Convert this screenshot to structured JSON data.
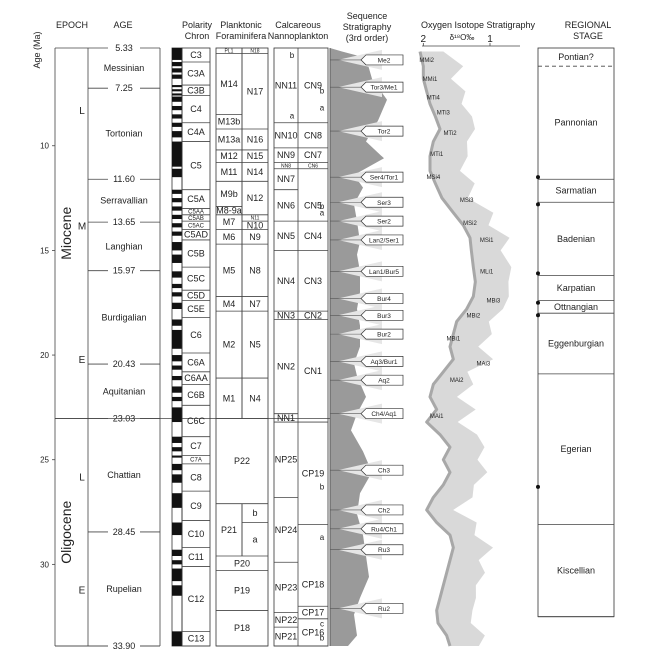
{
  "headers": {
    "age_axis": "Age (Ma)",
    "epoch": "EPOCH",
    "age": "AGE",
    "polarity": [
      "Polarity",
      "Chron"
    ],
    "planktonic": [
      "Planktonic",
      "Foraminifera"
    ],
    "nanno": [
      "Calcareous",
      "Nannoplankton"
    ],
    "sequence": [
      "Sequence",
      "Stratigraphy",
      "(3rd order)"
    ],
    "isotope": "Oxygen Isotope Stratigraphy",
    "isotope_unit": "δ¹⁸O‰",
    "regional": [
      "REGIONAL",
      "STAGE"
    ]
  },
  "axis": {
    "min": 5.33,
    "max": 33.9,
    "ticks": [
      10,
      15,
      20,
      25,
      30
    ],
    "isotope_ticks": [
      {
        "value": 2,
        "label": "2"
      },
      {
        "value": 1,
        "label": "1"
      }
    ]
  },
  "epochs": [
    {
      "name": "Miocene",
      "start": 5.33,
      "end": 23.03,
      "subs": [
        {
          "label": "L",
          "at": 8.3
        },
        {
          "label": "M",
          "at": 13.8
        },
        {
          "label": "E",
          "at": 20.2
        }
      ]
    },
    {
      "name": "Oligocene",
      "start": 23.03,
      "end": 33.9,
      "subs": [
        {
          "label": "L",
          "at": 25.8
        },
        {
          "label": "E",
          "at": 31.2
        }
      ]
    }
  ],
  "stages": [
    {
      "name": "Messinian",
      "start": 5.33,
      "end": 7.25
    },
    {
      "name": "Tortonian",
      "start": 7.25,
      "end": 11.6
    },
    {
      "name": "Serravallian",
      "start": 11.6,
      "end": 13.65
    },
    {
      "name": "Langhian",
      "start": 13.65,
      "end": 15.97
    },
    {
      "name": "Burdigalian",
      "start": 15.97,
      "end": 20.43
    },
    {
      "name": "Aquitanian",
      "start": 20.43,
      "end": 23.03
    },
    {
      "name": "Chattian",
      "start": 23.03,
      "end": 28.45
    },
    {
      "name": "Rupelian",
      "start": 28.45,
      "end": 33.9
    }
  ],
  "age_labels": [
    {
      "value": 5.33,
      "label": "5.33"
    },
    {
      "value": 7.25,
      "label": "7.25"
    },
    {
      "value": 11.6,
      "label": "11.60"
    },
    {
      "value": 13.65,
      "label": "13.65"
    },
    {
      "value": 15.97,
      "label": "15.97"
    },
    {
      "value": 20.43,
      "label": "20.43"
    },
    {
      "value": 23.03,
      "label": "23.03"
    },
    {
      "value": 28.45,
      "label": "28.45"
    },
    {
      "value": 33.9,
      "label": "33.90"
    }
  ],
  "chrons": [
    {
      "name": "C3",
      "start": 5.33,
      "end": 6.0
    },
    {
      "name": "C3A",
      "start": 6.0,
      "end": 7.1
    },
    {
      "name": "C3B",
      "start": 7.1,
      "end": 7.6
    },
    {
      "name": "C4",
      "start": 7.6,
      "end": 8.9
    },
    {
      "name": "C4A",
      "start": 8.9,
      "end": 9.8
    },
    {
      "name": "C5",
      "start": 9.8,
      "end": 12.1
    },
    {
      "name": "C5A",
      "start": 12.1,
      "end": 13.0
    },
    {
      "name": "C5AA",
      "start": 13.0,
      "end": 13.3
    },
    {
      "name": "C5AB",
      "start": 13.3,
      "end": 13.6
    },
    {
      "name": "C5AC",
      "start": 13.6,
      "end": 14.0
    },
    {
      "name": "C5AD",
      "start": 14.0,
      "end": 14.5
    },
    {
      "name": "C5B",
      "start": 14.5,
      "end": 15.8
    },
    {
      "name": "C5C",
      "start": 15.8,
      "end": 16.9
    },
    {
      "name": "C5D",
      "start": 16.9,
      "end": 17.4
    },
    {
      "name": "C5E",
      "start": 17.4,
      "end": 18.2
    },
    {
      "name": "C6",
      "start": 18.2,
      "end": 19.9
    },
    {
      "name": "C6A",
      "start": 19.9,
      "end": 20.8
    },
    {
      "name": "C6AA",
      "start": 20.8,
      "end": 21.4
    },
    {
      "name": "C6B",
      "start": 21.4,
      "end": 22.4
    },
    {
      "name": "C6C",
      "start": 22.4,
      "end": 23.9
    },
    {
      "name": "C7",
      "start": 23.9,
      "end": 24.8
    },
    {
      "name": "C7A",
      "start": 24.8,
      "end": 25.2
    },
    {
      "name": "C8",
      "start": 25.2,
      "end": 26.5
    },
    {
      "name": "C9",
      "start": 26.5,
      "end": 27.9
    },
    {
      "name": "C10",
      "start": 27.9,
      "end": 29.2
    },
    {
      "name": "C11",
      "start": 29.2,
      "end": 30.1
    },
    {
      "name": "C12",
      "start": 30.1,
      "end": 33.2
    },
    {
      "name": "C13",
      "start": 33.2,
      "end": 33.9
    }
  ],
  "polarity_normal": [
    [
      5.33,
      5.9
    ],
    [
      6.0,
      6.2
    ],
    [
      6.3,
      6.5
    ],
    [
      6.6,
      6.8
    ],
    [
      7.1,
      7.2
    ],
    [
      7.3,
      7.4
    ],
    [
      7.5,
      7.6
    ],
    [
      7.65,
      7.9
    ],
    [
      8.1,
      8.3
    ],
    [
      8.5,
      8.7
    ],
    [
      8.9,
      9.1
    ],
    [
      9.3,
      9.6
    ],
    [
      9.8,
      11.0
    ],
    [
      11.1,
      11.5
    ],
    [
      12.1,
      12.3
    ],
    [
      12.5,
      12.7
    ],
    [
      12.9,
      13.1
    ],
    [
      13.3,
      13.5
    ],
    [
      13.7,
      13.9
    ],
    [
      14.1,
      14.3
    ],
    [
      14.6,
      15.0
    ],
    [
      15.2,
      15.6
    ],
    [
      16.0,
      16.3
    ],
    [
      16.6,
      16.8
    ],
    [
      17.0,
      17.2
    ],
    [
      17.5,
      17.8
    ],
    [
      18.3,
      18.6
    ],
    [
      18.8,
      19.7
    ],
    [
      20.0,
      20.3
    ],
    [
      20.5,
      20.7
    ],
    [
      21.0,
      21.2
    ],
    [
      21.5,
      21.8
    ],
    [
      22.0,
      22.2
    ],
    [
      22.5,
      23.2
    ],
    [
      23.9,
      24.2
    ],
    [
      24.4,
      24.6
    ],
    [
      24.8,
      24.9
    ],
    [
      25.2,
      25.5
    ],
    [
      25.7,
      26.1
    ],
    [
      26.6,
      27.3
    ],
    [
      28.0,
      28.6
    ],
    [
      29.3,
      29.6
    ],
    [
      29.8,
      30.0
    ],
    [
      30.2,
      30.8
    ],
    [
      31.0,
      31.5
    ],
    [
      33.2,
      33.9
    ]
  ],
  "foram_zones": [
    {
      "name": "PL1",
      "start": 5.33,
      "end": 5.6,
      "col": "left"
    },
    {
      "name": "N18",
      "start": 5.33,
      "end": 5.6,
      "col": "right"
    },
    {
      "name": "M14",
      "start": 5.6,
      "end": 8.5,
      "col": "left"
    },
    {
      "name": "M13b",
      "start": 8.5,
      "end": 9.2,
      "col": "left"
    },
    {
      "name": "N17",
      "start": 5.6,
      "end": 9.2,
      "col": "right"
    },
    {
      "name": "M13a",
      "start": 9.2,
      "end": 10.2,
      "col": "left"
    },
    {
      "name": "N16",
      "start": 9.2,
      "end": 10.2,
      "col": "right"
    },
    {
      "name": "M12",
      "start": 10.2,
      "end": 10.8,
      "col": "left"
    },
    {
      "name": "N15",
      "start": 10.2,
      "end": 10.8,
      "col": "right"
    },
    {
      "name": "M11",
      "start": 10.8,
      "end": 11.7,
      "col": "left"
    },
    {
      "name": "N14",
      "start": 10.8,
      "end": 11.7,
      "col": "right"
    },
    {
      "name": "M9b",
      "start": 11.7,
      "end": 12.9,
      "col": "left"
    },
    {
      "name": "N12",
      "start": 11.7,
      "end": 13.3,
      "col": "right"
    },
    {
      "name": "M8-9a",
      "start": 12.9,
      "end": 13.3,
      "col": "left"
    },
    {
      "name": "M7",
      "start": 13.3,
      "end": 14.0,
      "col": "left"
    },
    {
      "name": "N11",
      "start": 13.3,
      "end": 13.6,
      "col": "right"
    },
    {
      "name": "N10",
      "start": 13.6,
      "end": 14.0,
      "col": "right"
    },
    {
      "name": "M6",
      "start": 14.0,
      "end": 14.7,
      "col": "left"
    },
    {
      "name": "N9",
      "start": 14.0,
      "end": 14.7,
      "col": "right"
    },
    {
      "name": "M5",
      "start": 14.7,
      "end": 17.2,
      "col": "left"
    },
    {
      "name": "N8",
      "start": 14.7,
      "end": 17.2,
      "col": "right"
    },
    {
      "name": "M4",
      "start": 17.2,
      "end": 17.9,
      "col": "left"
    },
    {
      "name": "N7",
      "start": 17.2,
      "end": 17.9,
      "col": "right"
    },
    {
      "name": "M2",
      "start": 17.9,
      "end": 21.1,
      "col": "left"
    },
    {
      "name": "N5",
      "start": 17.9,
      "end": 21.1,
      "col": "right"
    },
    {
      "name": "M1",
      "start": 21.1,
      "end": 23.03,
      "col": "left"
    },
    {
      "name": "N4",
      "start": 21.1,
      "end": 23.03,
      "col": "right"
    },
    {
      "name": "P22",
      "start": 23.03,
      "end": 27.1,
      "col": "full"
    },
    {
      "name": "P21",
      "start": 27.1,
      "end": 29.6,
      "col": "left"
    },
    {
      "name": "b",
      "start": 27.1,
      "end": 28.0,
      "col": "right"
    },
    {
      "name": "a",
      "start": 28.0,
      "end": 29.6,
      "col": "right"
    },
    {
      "name": "P20",
      "start": 29.6,
      "end": 30.3,
      "col": "full"
    },
    {
      "name": "P19",
      "start": 30.3,
      "end": 32.2,
      "col": "full"
    },
    {
      "name": "P18",
      "start": 32.2,
      "end": 33.9,
      "col": "full"
    }
  ],
  "nanno_zones": [
    {
      "name": "NN11",
      "start": 5.33,
      "end": 8.9,
      "col": "left"
    },
    {
      "name": "b",
      "start": 5.33,
      "end": 6.8,
      "col": "left-sub"
    },
    {
      "name": "a",
      "start": 6.8,
      "end": 8.9,
      "col": "left-sub"
    },
    {
      "name": "CN9",
      "start": 5.33,
      "end": 8.9,
      "col": "right"
    },
    {
      "name": "b",
      "start": 5.33,
      "end": 6.8,
      "col": "right-sub"
    },
    {
      "name": "a",
      "start": 6.8,
      "end": 8.9,
      "col": "right-sub"
    },
    {
      "name": "NN10",
      "start": 8.9,
      "end": 10.1,
      "col": "left"
    },
    {
      "name": "CN8",
      "start": 8.9,
      "end": 10.1,
      "col": "right"
    },
    {
      "name": "NN9",
      "start": 10.1,
      "end": 10.8,
      "col": "left"
    },
    {
      "name": "CN7",
      "start": 10.1,
      "end": 10.8,
      "col": "right"
    },
    {
      "name": "NN8",
      "start": 10.8,
      "end": 11.1,
      "col": "left"
    },
    {
      "name": "CN6",
      "start": 10.8,
      "end": 11.1,
      "col": "right"
    },
    {
      "name": "NN7",
      "start": 11.1,
      "end": 12.1,
      "col": "left"
    },
    {
      "name": "b",
      "start": 11.1,
      "end": 12.1,
      "col": "right-sub"
    },
    {
      "name": "NN6",
      "start": 12.1,
      "end": 13.6,
      "col": "left"
    },
    {
      "name": "CN5",
      "start": 12.1,
      "end": 13.6,
      "col": "right"
    },
    {
      "name": "a",
      "start": 12.1,
      "end": 13.6,
      "col": "right-sub"
    },
    {
      "name": "NN5",
      "start": 13.6,
      "end": 15.0,
      "col": "left"
    },
    {
      "name": "CN4",
      "start": 13.6,
      "end": 15.0,
      "col": "right"
    },
    {
      "name": "NN4",
      "start": 15.0,
      "end": 17.9,
      "col": "left"
    },
    {
      "name": "CN3",
      "start": 15.0,
      "end": 17.9,
      "col": "right"
    },
    {
      "name": "NN3",
      "start": 17.9,
      "end": 18.3,
      "col": "left"
    },
    {
      "name": "CN2",
      "start": 17.9,
      "end": 18.3,
      "col": "right"
    },
    {
      "name": "NN2",
      "start": 18.3,
      "end": 22.8,
      "col": "left"
    },
    {
      "name": "CN1",
      "start": 18.3,
      "end": 23.2,
      "col": "right"
    },
    {
      "name": "NN1",
      "start": 22.8,
      "end": 23.2,
      "col": "left"
    },
    {
      "name": "NP25",
      "start": 23.2,
      "end": 26.8,
      "col": "left"
    },
    {
      "name": "CP19",
      "start": 23.2,
      "end": 28.1,
      "col": "right"
    },
    {
      "name": "b",
      "start": 23.2,
      "end": 26.8,
      "col": "right-sub"
    },
    {
      "name": "NP24",
      "start": 26.8,
      "end": 29.9,
      "col": "left"
    },
    {
      "name": "a",
      "start": 26.8,
      "end": 29.9,
      "col": "right-sub"
    },
    {
      "name": "NP23",
      "start": 29.9,
      "end": 32.3,
      "col": "left"
    },
    {
      "name": "CP18",
      "start": 29.9,
      "end": 32.0,
      "col": "right"
    },
    {
      "name": "CP17",
      "start": 32.0,
      "end": 32.6,
      "col": "right"
    },
    {
      "name": "NP22",
      "start": 32.3,
      "end": 33.0,
      "col": "left"
    },
    {
      "name": "NP21",
      "start": 33.0,
      "end": 33.9,
      "col": "left"
    },
    {
      "name": "CP16",
      "start": 32.6,
      "end": 33.9,
      "col": "right"
    },
    {
      "name": "c",
      "start": 32.6,
      "end": 33.1,
      "col": "right-sub"
    },
    {
      "name": "b",
      "start": 33.1,
      "end": 33.9,
      "col": "right-sub"
    }
  ],
  "sequence_boundaries": [
    {
      "label": "Me2",
      "at": 5.9
    },
    {
      "label": "Tor3/Me1",
      "at": 7.2
    },
    {
      "label": "Tor2",
      "at": 9.3
    },
    {
      "label": "Ser4/Tor1",
      "at": 11.5
    },
    {
      "label": "Ser3",
      "at": 12.7
    },
    {
      "label": "Ser2",
      "at": 13.6
    },
    {
      "label": "Lan2/Ser1",
      "at": 14.5
    },
    {
      "label": "Lan1/Bur5",
      "at": 16.0
    },
    {
      "label": "Bur4",
      "at": 17.3
    },
    {
      "label": "Bur3",
      "at": 18.1
    },
    {
      "label": "Bur2",
      "at": 19.0
    },
    {
      "label": "Aq3/Bur1",
      "at": 20.3
    },
    {
      "label": "Aq2",
      "at": 21.2
    },
    {
      "label": "Ch4/Aq1",
      "at": 22.8
    },
    {
      "label": "Ch3",
      "at": 25.5
    },
    {
      "label": "Ch2",
      "at": 27.4
    },
    {
      "label": "Ru4/Ch1",
      "at": 28.3
    },
    {
      "label": "Ru3",
      "at": 29.3
    },
    {
      "label": "Ru2",
      "at": 32.1
    }
  ],
  "isotope_events": [
    {
      "label": "MMi2",
      "at": 5.9,
      "value": 1.95
    },
    {
      "label": "MMi1",
      "at": 6.8,
      "value": 1.9
    },
    {
      "label": "MTi4",
      "at": 7.7,
      "value": 1.85
    },
    {
      "label": "MTi3",
      "at": 8.4,
      "value": 1.7
    },
    {
      "label": "MTi2",
      "at": 9.4,
      "value": 1.6
    },
    {
      "label": "MTi1",
      "at": 10.4,
      "value": 1.8
    },
    {
      "label": "MSi4",
      "at": 11.5,
      "value": 1.85
    },
    {
      "label": "MSi3",
      "at": 12.6,
      "value": 1.35
    },
    {
      "label": "MSi2",
      "at": 13.7,
      "value": 1.3
    },
    {
      "label": "MSi1",
      "at": 14.5,
      "value": 1.05
    },
    {
      "label": "MLi1",
      "at": 16.0,
      "value": 1.05
    },
    {
      "label": "MBi3",
      "at": 17.4,
      "value": 0.95
    },
    {
      "label": "MBi2",
      "at": 18.1,
      "value": 1.25
    },
    {
      "label": "MBi1",
      "at": 19.2,
      "value": 1.55
    },
    {
      "label": "MAi3",
      "at": 20.4,
      "value": 1.1
    },
    {
      "label": "MAi2",
      "at": 21.2,
      "value": 1.5
    },
    {
      "label": "MAi1",
      "at": 22.9,
      "value": 1.8
    }
  ],
  "isotope_curve": [
    [
      5.5,
      2.05
    ],
    [
      6.2,
      2.0
    ],
    [
      6.8,
      2.0
    ],
    [
      7.4,
      1.95
    ],
    [
      8.0,
      1.9
    ],
    [
      8.6,
      1.82
    ],
    [
      9.2,
      1.75
    ],
    [
      9.8,
      1.85
    ],
    [
      10.5,
      1.9
    ],
    [
      11.2,
      1.9
    ],
    [
      11.8,
      1.82
    ],
    [
      12.5,
      1.72
    ],
    [
      13.2,
      1.55
    ],
    [
      13.8,
      1.4
    ],
    [
      14.4,
      1.3
    ],
    [
      15.0,
      1.28
    ],
    [
      15.8,
      1.25
    ],
    [
      16.5,
      1.22
    ],
    [
      17.2,
      1.25
    ],
    [
      17.8,
      1.35
    ],
    [
      18.4,
      1.5
    ],
    [
      19.0,
      1.55
    ],
    [
      19.6,
      1.6
    ],
    [
      20.2,
      1.55
    ],
    [
      20.8,
      1.7
    ],
    [
      21.4,
      1.85
    ],
    [
      22.0,
      1.9
    ],
    [
      22.6,
      1.8
    ],
    [
      23.2,
      1.95
    ],
    [
      23.8,
      1.75
    ],
    [
      24.4,
      1.6
    ],
    [
      25.0,
      1.7
    ],
    [
      25.6,
      1.6
    ],
    [
      26.2,
      1.7
    ],
    [
      26.8,
      1.85
    ],
    [
      27.4,
      1.95
    ],
    [
      28.0,
      1.8
    ],
    [
      28.6,
      1.6
    ],
    [
      29.2,
      1.55
    ],
    [
      29.8,
      1.6
    ],
    [
      30.4,
      1.65
    ],
    [
      31.0,
      1.7
    ],
    [
      31.6,
      1.75
    ],
    [
      32.2,
      1.8
    ],
    [
      32.8,
      1.78
    ],
    [
      33.4,
      1.65
    ],
    [
      33.9,
      1.6
    ]
  ],
  "sea_level_peaks": [
    [
      5.5,
      0.2
    ],
    [
      5.8,
      0.6
    ],
    [
      6.8,
      0.7
    ],
    [
      7.8,
      0.95
    ],
    [
      8.8,
      0.8
    ],
    [
      9.8,
      0.6
    ],
    [
      10.6,
      0.9
    ],
    [
      11.4,
      0.4
    ],
    [
      12.0,
      0.55
    ],
    [
      12.8,
      0.4
    ],
    [
      13.6,
      0.45
    ],
    [
      14.6,
      0.5
    ],
    [
      15.2,
      0.45
    ],
    [
      16.0,
      0.5
    ],
    [
      17.0,
      0.5
    ],
    [
      17.8,
      0.45
    ],
    [
      18.6,
      0.5
    ],
    [
      19.6,
      0.5
    ],
    [
      20.4,
      0.4
    ],
    [
      21.0,
      0.45
    ],
    [
      22.0,
      0.6
    ],
    [
      22.8,
      0.45
    ],
    [
      23.6,
      0.35
    ],
    [
      24.6,
      0.55
    ],
    [
      25.6,
      0.7
    ],
    [
      26.6,
      0.5
    ],
    [
      27.6,
      0.45
    ],
    [
      28.6,
      0.55
    ],
    [
      29.6,
      0.6
    ],
    [
      30.6,
      0.65
    ],
    [
      31.6,
      0.5
    ],
    [
      32.4,
      0.4
    ],
    [
      33.4,
      0.45
    ],
    [
      33.9,
      0.3
    ]
  ],
  "regional_stages": [
    {
      "name": "Pontian?",
      "start": 5.33,
      "end": 6.2,
      "dashed": true
    },
    {
      "name": "Pannonian",
      "start": 6.2,
      "end": 11.6
    },
    {
      "name": "Sarmatian",
      "start": 11.6,
      "end": 12.7
    },
    {
      "name": "Badenian",
      "start": 12.7,
      "end": 16.2
    },
    {
      "name": "Karpatian",
      "start": 16.2,
      "end": 17.4
    },
    {
      "name": "Ottnangian",
      "start": 17.4,
      "end": 18.0
    },
    {
      "name": "Eggenburgian",
      "start": 18.0,
      "end": 20.9
    },
    {
      "name": "Egerian",
      "start": 20.9,
      "end": 28.1
    },
    {
      "name": "Kiscellian",
      "start": 28.1,
      "end": 32.5
    }
  ],
  "regional_dots": [
    11.5,
    12.8,
    16.1,
    17.5,
    18.1,
    26.3
  ]
}
